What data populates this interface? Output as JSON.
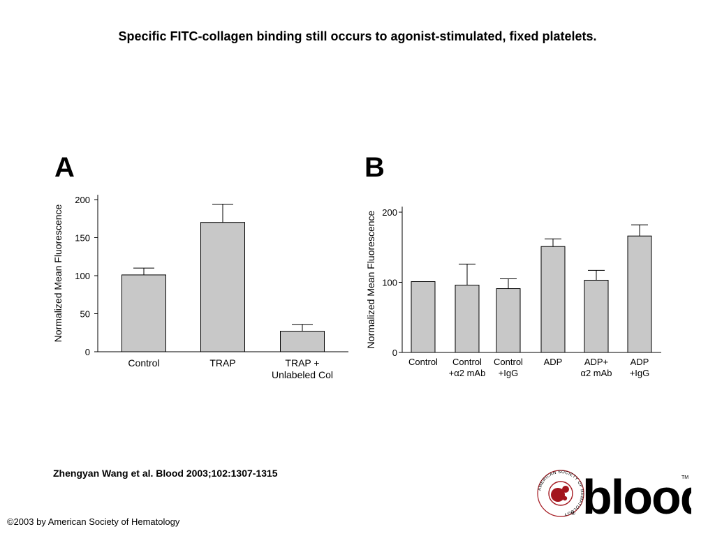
{
  "slide": {
    "title": "Specific FITC-collagen binding still occurs to agonist-stimulated, fixed platelets.",
    "citation": "Zhengyan Wang et al. Blood 2003;102:1307-1315",
    "copyright": "©2003 by American Society of Hematology",
    "logo_text": "blood",
    "logo_ring_text": "AMERICAN SOCIETY OF HEMATOLOGY",
    "logo_mark": "®",
    "logo_tm": "TM"
  },
  "colors": {
    "bar_fill": "#c8c8c8",
    "bar_stroke": "#000000",
    "logo_red": "#a3151d"
  },
  "chart_data": [
    {
      "panel": "A",
      "type": "bar",
      "ylabel": "Normalized Mean Fluorescence",
      "ylim": [
        0,
        200
      ],
      "yticks": [
        0,
        50,
        100,
        150,
        200
      ],
      "categories": [
        [
          "Control"
        ],
        [
          "TRAP"
        ],
        [
          "TRAP +",
          "Unlabeled Col"
        ]
      ],
      "values": [
        101,
        170,
        27
      ],
      "errors": [
        9,
        24,
        9
      ]
    },
    {
      "panel": "B",
      "type": "bar",
      "ylabel": "Normalized Mean Fluorescence",
      "ylim": [
        0,
        200
      ],
      "yticks": [
        0,
        100,
        200
      ],
      "categories": [
        [
          "Control"
        ],
        [
          "Control",
          "+α2 mAb"
        ],
        [
          "Control",
          "+IgG"
        ],
        [
          "ADP"
        ],
        [
          "ADP+",
          "α2 mAb"
        ],
        [
          "ADP",
          "+IgG"
        ]
      ],
      "values": [
        101,
        96,
        91,
        151,
        103,
        166
      ],
      "errors": [
        0,
        30,
        14,
        11,
        14,
        16
      ]
    }
  ]
}
